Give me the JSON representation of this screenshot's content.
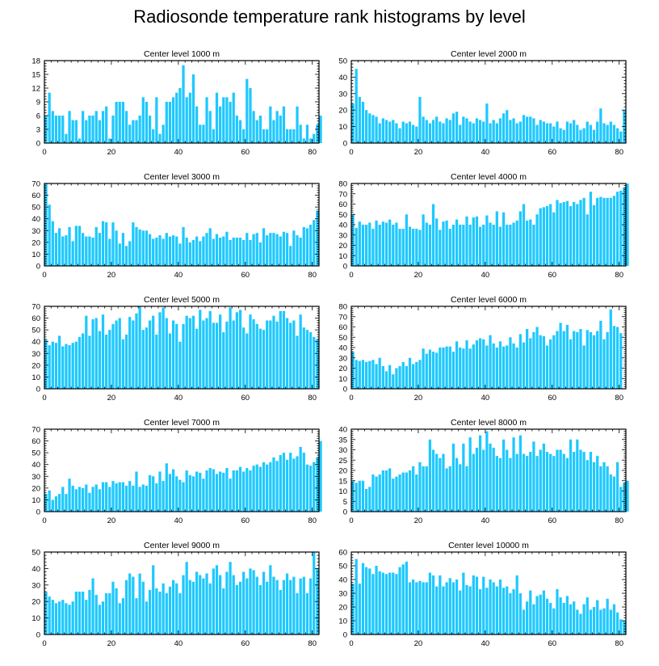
{
  "figure_title": "Radiosonde temperature rank histograms by level",
  "colors": {
    "bar": "#1ec8ff",
    "axis": "#000000",
    "background": "#ffffff"
  },
  "chart_data": [
    {
      "type": "bar",
      "title": "Center level 1000 m",
      "xlabel": "",
      "ylabel": "",
      "xlim": [
        0,
        82
      ],
      "xticks": [
        0,
        20,
        40,
        60,
        80
      ],
      "ylim": [
        0,
        18
      ],
      "yticks": [
        0,
        3,
        6,
        9,
        12,
        15,
        18
      ],
      "values": [
        6,
        11,
        7,
        6,
        6,
        6,
        2,
        7,
        5,
        5,
        1,
        7,
        5,
        6,
        6,
        7,
        5,
        7,
        8,
        1,
        6,
        9,
        9,
        9,
        7,
        4,
        5,
        5,
        6,
        10,
        9,
        6,
        3,
        10,
        2,
        4,
        9,
        9,
        10,
        11,
        12,
        17,
        10,
        11,
        15,
        8,
        4,
        4,
        10,
        7,
        3,
        11,
        8,
        10,
        10,
        9,
        11,
        6,
        5,
        3,
        14,
        12,
        7,
        5,
        6,
        3,
        3,
        8,
        5,
        7,
        6,
        8,
        3,
        3,
        3,
        8,
        4,
        1,
        4,
        1,
        2,
        4,
        6
      ]
    },
    {
      "type": "bar",
      "title": "Center level 2000 m",
      "xlabel": "",
      "ylabel": "",
      "xlim": [
        0,
        82
      ],
      "xticks": [
        0,
        20,
        40,
        60,
        80
      ],
      "ylim": [
        0,
        50
      ],
      "yticks": [
        0,
        10,
        20,
        30,
        40,
        50
      ],
      "values": [
        24,
        45,
        28,
        25,
        20,
        18,
        17,
        16,
        12,
        15,
        14,
        13,
        14,
        12,
        9,
        13,
        12,
        13,
        11,
        10,
        28,
        16,
        14,
        12,
        14,
        16,
        13,
        12,
        15,
        14,
        18,
        19,
        11,
        16,
        15,
        13,
        12,
        15,
        14,
        13,
        24,
        12,
        14,
        12,
        15,
        18,
        20,
        14,
        15,
        12,
        13,
        17,
        16,
        16,
        15,
        11,
        14,
        13,
        12,
        12,
        10,
        13,
        9,
        8,
        13,
        12,
        14,
        11,
        8,
        9,
        13,
        11,
        8,
        13,
        21,
        12,
        11,
        13,
        11,
        9,
        7,
        20
      ]
    },
    {
      "type": "bar",
      "title": "Center level 3000 m",
      "xlabel": "",
      "ylabel": "",
      "xlim": [
        0,
        82
      ],
      "xticks": [
        0,
        20,
        40,
        60,
        80
      ],
      "ylim": [
        0,
        70
      ],
      "yticks": [
        0,
        10,
        20,
        30,
        40,
        50,
        60,
        70
      ],
      "values": [
        70,
        52,
        38,
        28,
        32,
        25,
        26,
        33,
        21,
        34,
        34,
        28,
        25,
        25,
        24,
        33,
        28,
        38,
        37,
        23,
        37,
        30,
        19,
        28,
        17,
        21,
        37,
        33,
        31,
        30,
        30,
        27,
        23,
        24,
        26,
        23,
        28,
        25,
        26,
        25,
        19,
        33,
        24,
        20,
        22,
        25,
        21,
        25,
        28,
        32,
        23,
        27,
        24,
        25,
        29,
        22,
        24,
        24,
        24,
        22,
        28,
        22,
        27,
        28,
        20,
        32,
        26,
        28,
        28,
        27,
        25,
        29,
        28,
        17,
        30,
        26,
        24,
        33,
        32,
        35,
        39,
        47
      ]
    },
    {
      "type": "bar",
      "title": "Center level 4000 m",
      "xlabel": "",
      "ylabel": "",
      "xlim": [
        0,
        82
      ],
      "xticks": [
        0,
        20,
        40,
        60,
        80
      ],
      "ylim": [
        0,
        80
      ],
      "yticks": [
        0,
        10,
        20,
        30,
        40,
        50,
        60,
        70,
        80
      ],
      "values": [
        50,
        37,
        43,
        40,
        40,
        42,
        36,
        44,
        40,
        43,
        42,
        45,
        40,
        42,
        36,
        36,
        50,
        38,
        36,
        36,
        35,
        50,
        42,
        40,
        60,
        46,
        35,
        43,
        44,
        36,
        40,
        45,
        40,
        40,
        48,
        40,
        47,
        48,
        38,
        40,
        49,
        42,
        40,
        53,
        38,
        52,
        40,
        40,
        42,
        44,
        53,
        60,
        44,
        45,
        40,
        50,
        56,
        57,
        58,
        60,
        52,
        64,
        61,
        62,
        63,
        58,
        62,
        60,
        64,
        66,
        50,
        72,
        59,
        66,
        67,
        66,
        66,
        66,
        68,
        72,
        73,
        76,
        80
      ]
    },
    {
      "type": "bar",
      "title": "Center level 5000 m",
      "xlabel": "",
      "ylabel": "",
      "xlim": [
        0,
        82
      ],
      "xticks": [
        0,
        20,
        40,
        60,
        80
      ],
      "ylim": [
        0,
        70
      ],
      "yticks": [
        0,
        10,
        20,
        30,
        40,
        50,
        60,
        70
      ],
      "values": [
        42,
        37,
        40,
        39,
        45,
        36,
        38,
        37,
        39,
        40,
        44,
        47,
        62,
        45,
        59,
        60,
        49,
        63,
        46,
        50,
        55,
        58,
        60,
        42,
        46,
        61,
        58,
        64,
        70,
        50,
        52,
        58,
        62,
        46,
        65,
        69,
        60,
        47,
        58,
        55,
        40,
        55,
        62,
        60,
        62,
        51,
        67,
        58,
        60,
        66,
        56,
        56,
        63,
        48,
        57,
        69,
        58,
        65,
        67,
        52,
        47,
        63,
        59,
        55,
        51,
        50,
        58,
        58,
        62,
        57,
        66,
        66,
        60,
        56,
        58,
        45,
        63,
        52,
        50,
        48,
        44,
        42
      ]
    },
    {
      "type": "bar",
      "title": "Center level 6000 m",
      "xlabel": "",
      "ylabel": "",
      "xlim": [
        0,
        82
      ],
      "xticks": [
        0,
        20,
        40,
        60,
        80
      ],
      "ylim": [
        0,
        80
      ],
      "yticks": [
        0,
        10,
        20,
        30,
        40,
        50,
        60,
        70,
        80
      ],
      "values": [
        36,
        28,
        27,
        28,
        26,
        27,
        28,
        24,
        30,
        22,
        17,
        23,
        14,
        20,
        22,
        26,
        22,
        30,
        24,
        26,
        28,
        39,
        34,
        38,
        36,
        35,
        40,
        40,
        41,
        41,
        36,
        46,
        40,
        39,
        47,
        39,
        43,
        47,
        49,
        48,
        42,
        52,
        44,
        40,
        46,
        41,
        42,
        50,
        44,
        40,
        53,
        45,
        58,
        49,
        55,
        60,
        52,
        51,
        42,
        48,
        52,
        56,
        64,
        56,
        62,
        48,
        56,
        55,
        58,
        42,
        57,
        55,
        52,
        56,
        66,
        48,
        55,
        77,
        61,
        60,
        54
      ]
    },
    {
      "type": "bar",
      "title": "Center level 7000 m",
      "xlabel": "",
      "ylabel": "",
      "xlim": [
        0,
        82
      ],
      "xticks": [
        0,
        20,
        40,
        60,
        80
      ],
      "ylim": [
        0,
        70
      ],
      "yticks": [
        0,
        10,
        20,
        30,
        40,
        50,
        60,
        70
      ],
      "values": [
        15,
        18,
        10,
        13,
        15,
        21,
        15,
        28,
        22,
        19,
        21,
        20,
        23,
        16,
        21,
        23,
        19,
        25,
        25,
        21,
        26,
        24,
        25,
        25,
        22,
        26,
        22,
        34,
        21,
        23,
        22,
        31,
        30,
        24,
        34,
        26,
        41,
        32,
        36,
        30,
        27,
        25,
        35,
        31,
        30,
        34,
        33,
        28,
        35,
        37,
        36,
        32,
        34,
        33,
        37,
        28,
        35,
        35,
        38,
        34,
        37,
        35,
        39,
        40,
        38,
        42,
        40,
        42,
        46,
        43,
        48,
        50,
        44,
        50,
        45,
        47,
        55,
        50,
        40,
        39,
        42,
        46,
        60
      ]
    },
    {
      "type": "bar",
      "title": "Center level 8000 m",
      "xlabel": "",
      "ylabel": "",
      "xlim": [
        0,
        82
      ],
      "xticks": [
        0,
        20,
        40,
        60,
        80
      ],
      "ylim": [
        0,
        40
      ],
      "yticks": [
        0,
        5,
        10,
        15,
        20,
        25,
        30,
        35,
        40
      ],
      "values": [
        15,
        14,
        15,
        15,
        11,
        12,
        18,
        17,
        18,
        20,
        20,
        21,
        16,
        17,
        18,
        19,
        19,
        20,
        22,
        18,
        24,
        22,
        22,
        35,
        30,
        28,
        26,
        28,
        21,
        22,
        33,
        26,
        23,
        33,
        22,
        36,
        28,
        31,
        37,
        30,
        39,
        33,
        31,
        27,
        26,
        35,
        30,
        26,
        36,
        28,
        37,
        28,
        27,
        29,
        34,
        27,
        30,
        33,
        29,
        28,
        27,
        30,
        30,
        28,
        26,
        35,
        29,
        35,
        30,
        29,
        25,
        29,
        24,
        27,
        22,
        24,
        22,
        18,
        17,
        24,
        12,
        14,
        15
      ]
    },
    {
      "type": "bar",
      "title": "Center level 9000 m",
      "xlabel": "",
      "ylabel": "",
      "xlim": [
        0,
        82
      ],
      "xticks": [
        0,
        20,
        40,
        60,
        80
      ],
      "ylim": [
        0,
        50
      ],
      "yticks": [
        0,
        10,
        20,
        30,
        40,
        50
      ],
      "values": [
        26,
        23,
        21,
        19,
        20,
        21,
        19,
        18,
        20,
        26,
        26,
        26,
        21,
        27,
        34,
        24,
        18,
        20,
        25,
        25,
        32,
        28,
        19,
        22,
        33,
        37,
        35,
        22,
        37,
        32,
        20,
        27,
        42,
        28,
        26,
        31,
        25,
        29,
        33,
        31,
        25,
        36,
        44,
        33,
        32,
        38,
        36,
        34,
        37,
        31,
        40,
        42,
        36,
        28,
        38,
        44,
        36,
        30,
        32,
        38,
        34,
        40,
        39,
        35,
        30,
        38,
        32,
        42,
        35,
        33,
        27,
        33,
        37,
        33,
        35,
        25,
        34,
        35,
        25,
        34,
        50,
        40
      ]
    },
    {
      "type": "bar",
      "title": "Center level 10000 m",
      "xlabel": "",
      "ylabel": "",
      "xlim": [
        0,
        82
      ],
      "xticks": [
        0,
        20,
        40,
        60,
        80
      ],
      "ylim": [
        0,
        60
      ],
      "yticks": [
        0,
        10,
        20,
        30,
        40,
        50,
        60
      ],
      "values": [
        37,
        55,
        37,
        52,
        49,
        48,
        44,
        50,
        46,
        45,
        44,
        45,
        45,
        44,
        49,
        51,
        53,
        38,
        40,
        38,
        39,
        38,
        38,
        45,
        43,
        35,
        43,
        35,
        38,
        41,
        38,
        40,
        32,
        45,
        36,
        35,
        43,
        42,
        33,
        42,
        34,
        40,
        38,
        35,
        40,
        34,
        35,
        30,
        33,
        43,
        30,
        18,
        24,
        32,
        22,
        28,
        29,
        32,
        26,
        23,
        19,
        33,
        27,
        23,
        28,
        22,
        24,
        18,
        15,
        22,
        27,
        18,
        20,
        25,
        18,
        19,
        26,
        18,
        22,
        16,
        11,
        10
      ]
    }
  ]
}
